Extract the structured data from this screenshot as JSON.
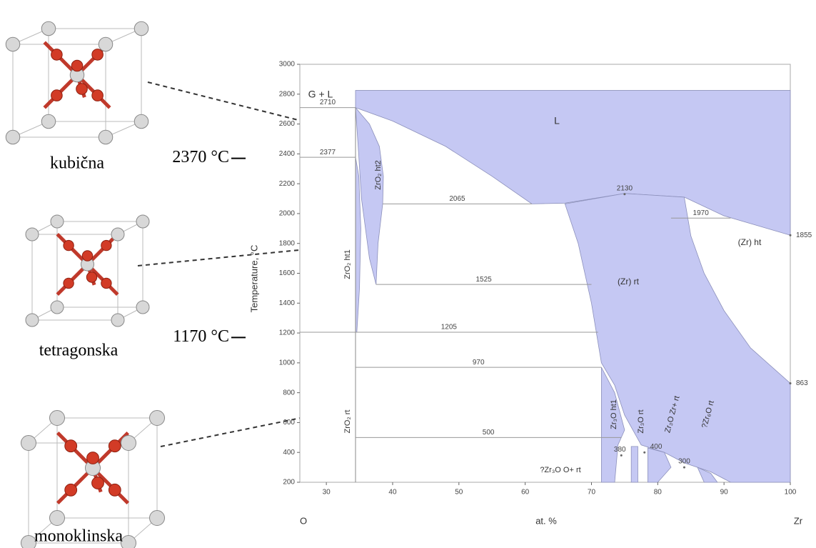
{
  "structures": [
    "kubična",
    "tetragonska",
    "monoklinska"
  ],
  "chart_data": {
    "type": "phase-diagram",
    "xlabel": "at. %",
    "ylabel": "Temperature, °C",
    "x_end_labels": [
      "O",
      "Zr"
    ],
    "xlim": [
      26,
      100
    ],
    "ylim": [
      200,
      3000
    ],
    "xticks": [
      30,
      40,
      50,
      60,
      70,
      80,
      90,
      100
    ],
    "yticks": [
      200,
      400,
      600,
      800,
      1000,
      1200,
      1400,
      1600,
      1800,
      2000,
      2200,
      2400,
      2600,
      2800,
      3000
    ],
    "region_color": "#c5c8f3",
    "regions": [
      {
        "x": [
          34.4,
          100,
          100,
          95,
          90,
          84,
          75,
          66,
          61,
          55,
          48,
          40,
          34.4
        ],
        "y": [
          2825,
          2825,
          1855,
          1920,
          1985,
          2110,
          2135,
          2070,
          2065,
          2250,
          2450,
          2620,
          2710
        ]
      },
      {
        "x": [
          34.4,
          36.5,
          38,
          38.6,
          38.5,
          37.8,
          37.5,
          36.5,
          35.3,
          34.8
        ],
        "y": [
          2710,
          2600,
          2450,
          2250,
          2065,
          1800,
          1525,
          1700,
          2100,
          2450
        ]
      },
      {
        "x": [
          34.4,
          34.9,
          35.2,
          35,
          34.6,
          34.4
        ],
        "y": [
          2377,
          2250,
          1900,
          1500,
          1205,
          1205
        ]
      },
      {
        "x": [
          66,
          75,
          84,
          85,
          87,
          90,
          94,
          100,
          100,
          91,
          88,
          84,
          81,
          77.5,
          75,
          73.5,
          71.5,
          70,
          68
        ],
        "y": [
          2065,
          2135,
          2110,
          1850,
          1600,
          1350,
          1100,
          863,
          200,
          200,
          270,
          330,
          400,
          450,
          650,
          850,
          1000,
          1400,
          1800
        ]
      },
      {
        "x": [
          71.5,
          73.5,
          75,
          74,
          73.5,
          71.5
        ],
        "y": [
          970,
          800,
          550,
          450,
          200,
          200
        ]
      },
      {
        "x": [
          76,
          77,
          77,
          76
        ],
        "y": [
          440,
          440,
          200,
          200
        ]
      },
      {
        "x": [
          78.5,
          81,
          82,
          80,
          78.5
        ],
        "y": [
          430,
          400,
          300,
          200,
          200
        ]
      },
      {
        "x": [
          86,
          88,
          89,
          87
        ],
        "y": [
          300,
          260,
          200,
          200
        ]
      }
    ],
    "compound_x": 34.4,
    "isotherms": [
      {
        "value": 2710,
        "x": [
          26,
          34.4
        ]
      },
      {
        "value": 2377,
        "x": [
          26,
          34.4
        ]
      },
      {
        "value": 2065,
        "x": [
          38.5,
          61
        ]
      },
      {
        "value": 1970,
        "x": [
          82,
          91
        ]
      },
      {
        "value": 1525,
        "x": [
          37.5,
          70
        ]
      },
      {
        "value": 1205,
        "x": [
          26,
          71
        ]
      },
      {
        "value": 970,
        "x": [
          34.4,
          71.5
        ]
      },
      {
        "value": 500,
        "x": [
          34.4,
          74.5
        ]
      }
    ],
    "points": [
      {
        "x": 75,
        "value": 2130
      },
      {
        "x": 100,
        "value": 1855
      },
      {
        "x": 100,
        "value": 863
      },
      {
        "x": 78,
        "value": 400
      },
      {
        "x": 74.5,
        "value": 380
      },
      {
        "x": 84,
        "value": 300
      }
    ],
    "labels": [
      "G + L",
      "L",
      "ZrO₂ ht2",
      "ZrO₂ ht1",
      "ZrO₂ rt",
      "(Zr) rt",
      "(Zr) ht",
      "Zr₃O ht1",
      "Zr₃O rt",
      "Zr₃O Zr+ rt",
      "?Zr₆O rt",
      "?Zr₃O O+ rt"
    ],
    "annotations": [
      {
        "value": 2370,
        "label": "2370 °C"
      },
      {
        "value": 1170,
        "label": "1170 °C"
      }
    ]
  }
}
